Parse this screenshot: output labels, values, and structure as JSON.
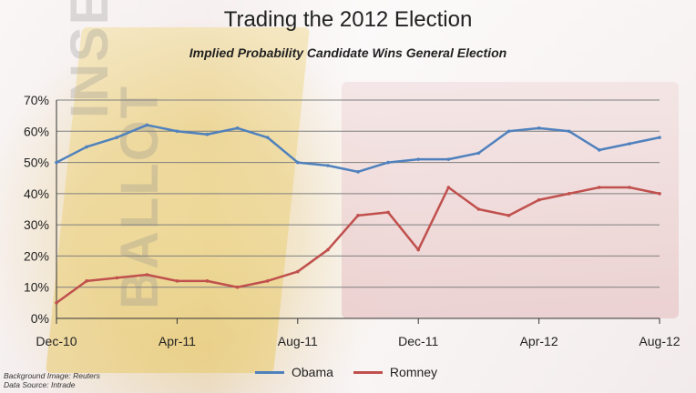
{
  "title": "Trading the 2012 Election",
  "subtitle": "Implied Probability Candidate Wins General Election",
  "source_lines": [
    "Background Image: Reuters",
    "Data Source: Intrade"
  ],
  "watermark": [
    "INSERT",
    "BALLOT"
  ],
  "chart_data": {
    "type": "line",
    "title": "Trading the 2012 Election",
    "subtitle": "Implied Probability Candidate Wins General Election",
    "xlabel": "",
    "ylabel": "",
    "x_tick_labels": [
      "Dec-10",
      "Apr-11",
      "Aug-11",
      "Dec-11",
      "Apr-12",
      "Aug-12"
    ],
    "y_tick_labels": [
      "0%",
      "10%",
      "20%",
      "30%",
      "40%",
      "50%",
      "60%",
      "70%"
    ],
    "ylim": [
      0,
      70
    ],
    "grid": true,
    "legend": "bottom",
    "x": [
      "2010-12",
      "2011-01",
      "2011-02",
      "2011-03",
      "2011-04",
      "2011-05",
      "2011-06",
      "2011-07",
      "2011-08",
      "2011-09",
      "2011-10",
      "2011-11",
      "2011-12",
      "2012-01",
      "2012-02",
      "2012-03",
      "2012-04",
      "2012-05",
      "2012-06",
      "2012-07",
      "2012-08"
    ],
    "series": [
      {
        "name": "Obama",
        "color": "#4f81bd",
        "values": [
          50,
          55,
          58,
          62,
          60,
          59,
          61,
          58,
          50,
          49,
          47,
          50,
          51,
          51,
          53,
          60,
          61,
          60,
          54,
          56,
          58
        ]
      },
      {
        "name": "Romney",
        "color": "#c0504d",
        "values": [
          5,
          12,
          13,
          14,
          12,
          12,
          10,
          12,
          15,
          22,
          33,
          34,
          22,
          42,
          35,
          33,
          38,
          40,
          42,
          42,
          40
        ]
      }
    ]
  }
}
